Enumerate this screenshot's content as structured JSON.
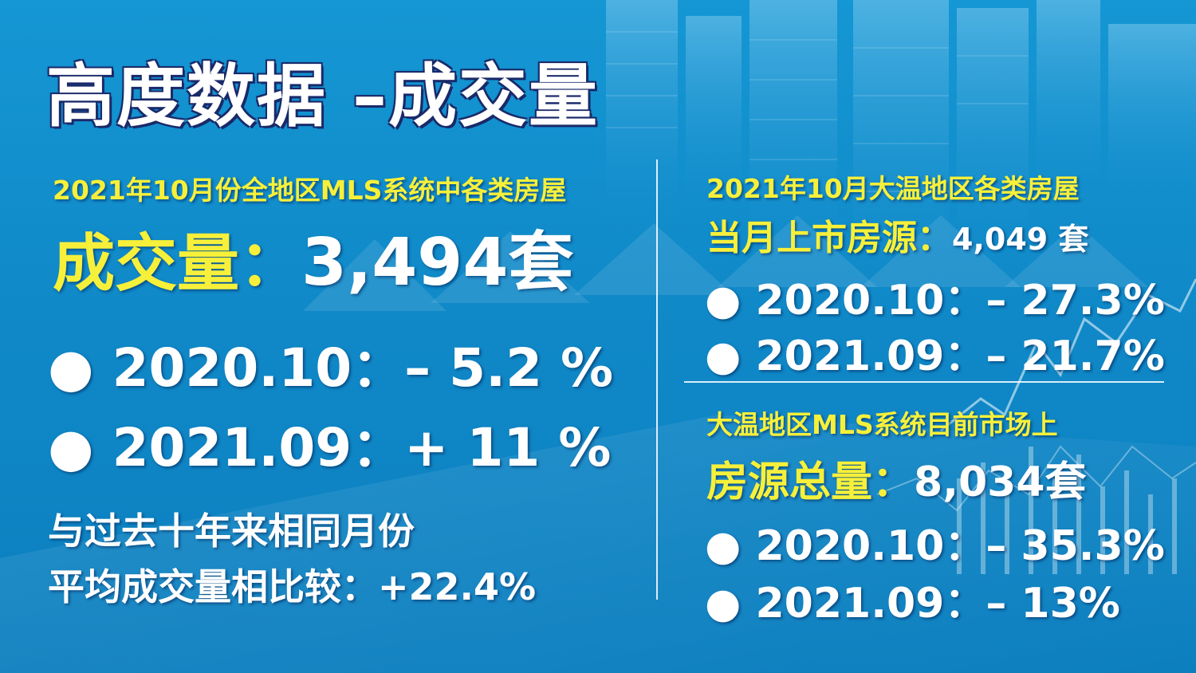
{
  "slide": {
    "title": "高度数据 –成交量",
    "left": {
      "subtitle": "2021年10月份全地区MLS系统中各类房屋",
      "headline_label": "成交量：",
      "headline_value": "3,494套",
      "rows": [
        "● 2020.10：– 5.2 %",
        "● 2021.09：+ 11 %"
      ],
      "note_line1": "与过去十年来相同月份",
      "note_line2": "平均成交量相比较：+22.4%"
    },
    "right_top": {
      "subtitle": "2021年10月大温地区各类房屋",
      "label": "当月上市房源：",
      "value": "4,049 套",
      "rows": [
        "● 2020.10：– 27.3%",
        "● 2021.09：– 21.7%"
      ]
    },
    "right_bottom": {
      "subtitle": "大温地区MLS系统目前市场上",
      "label": "房源总量：",
      "value": "8,034套",
      "rows": [
        "● 2020.10：– 35.3%",
        "● 2021.09：– 13%"
      ]
    }
  },
  "colors": {
    "background": "#1089c8",
    "accent_yellow": "#f7f03a",
    "text_white": "#ffffff"
  }
}
